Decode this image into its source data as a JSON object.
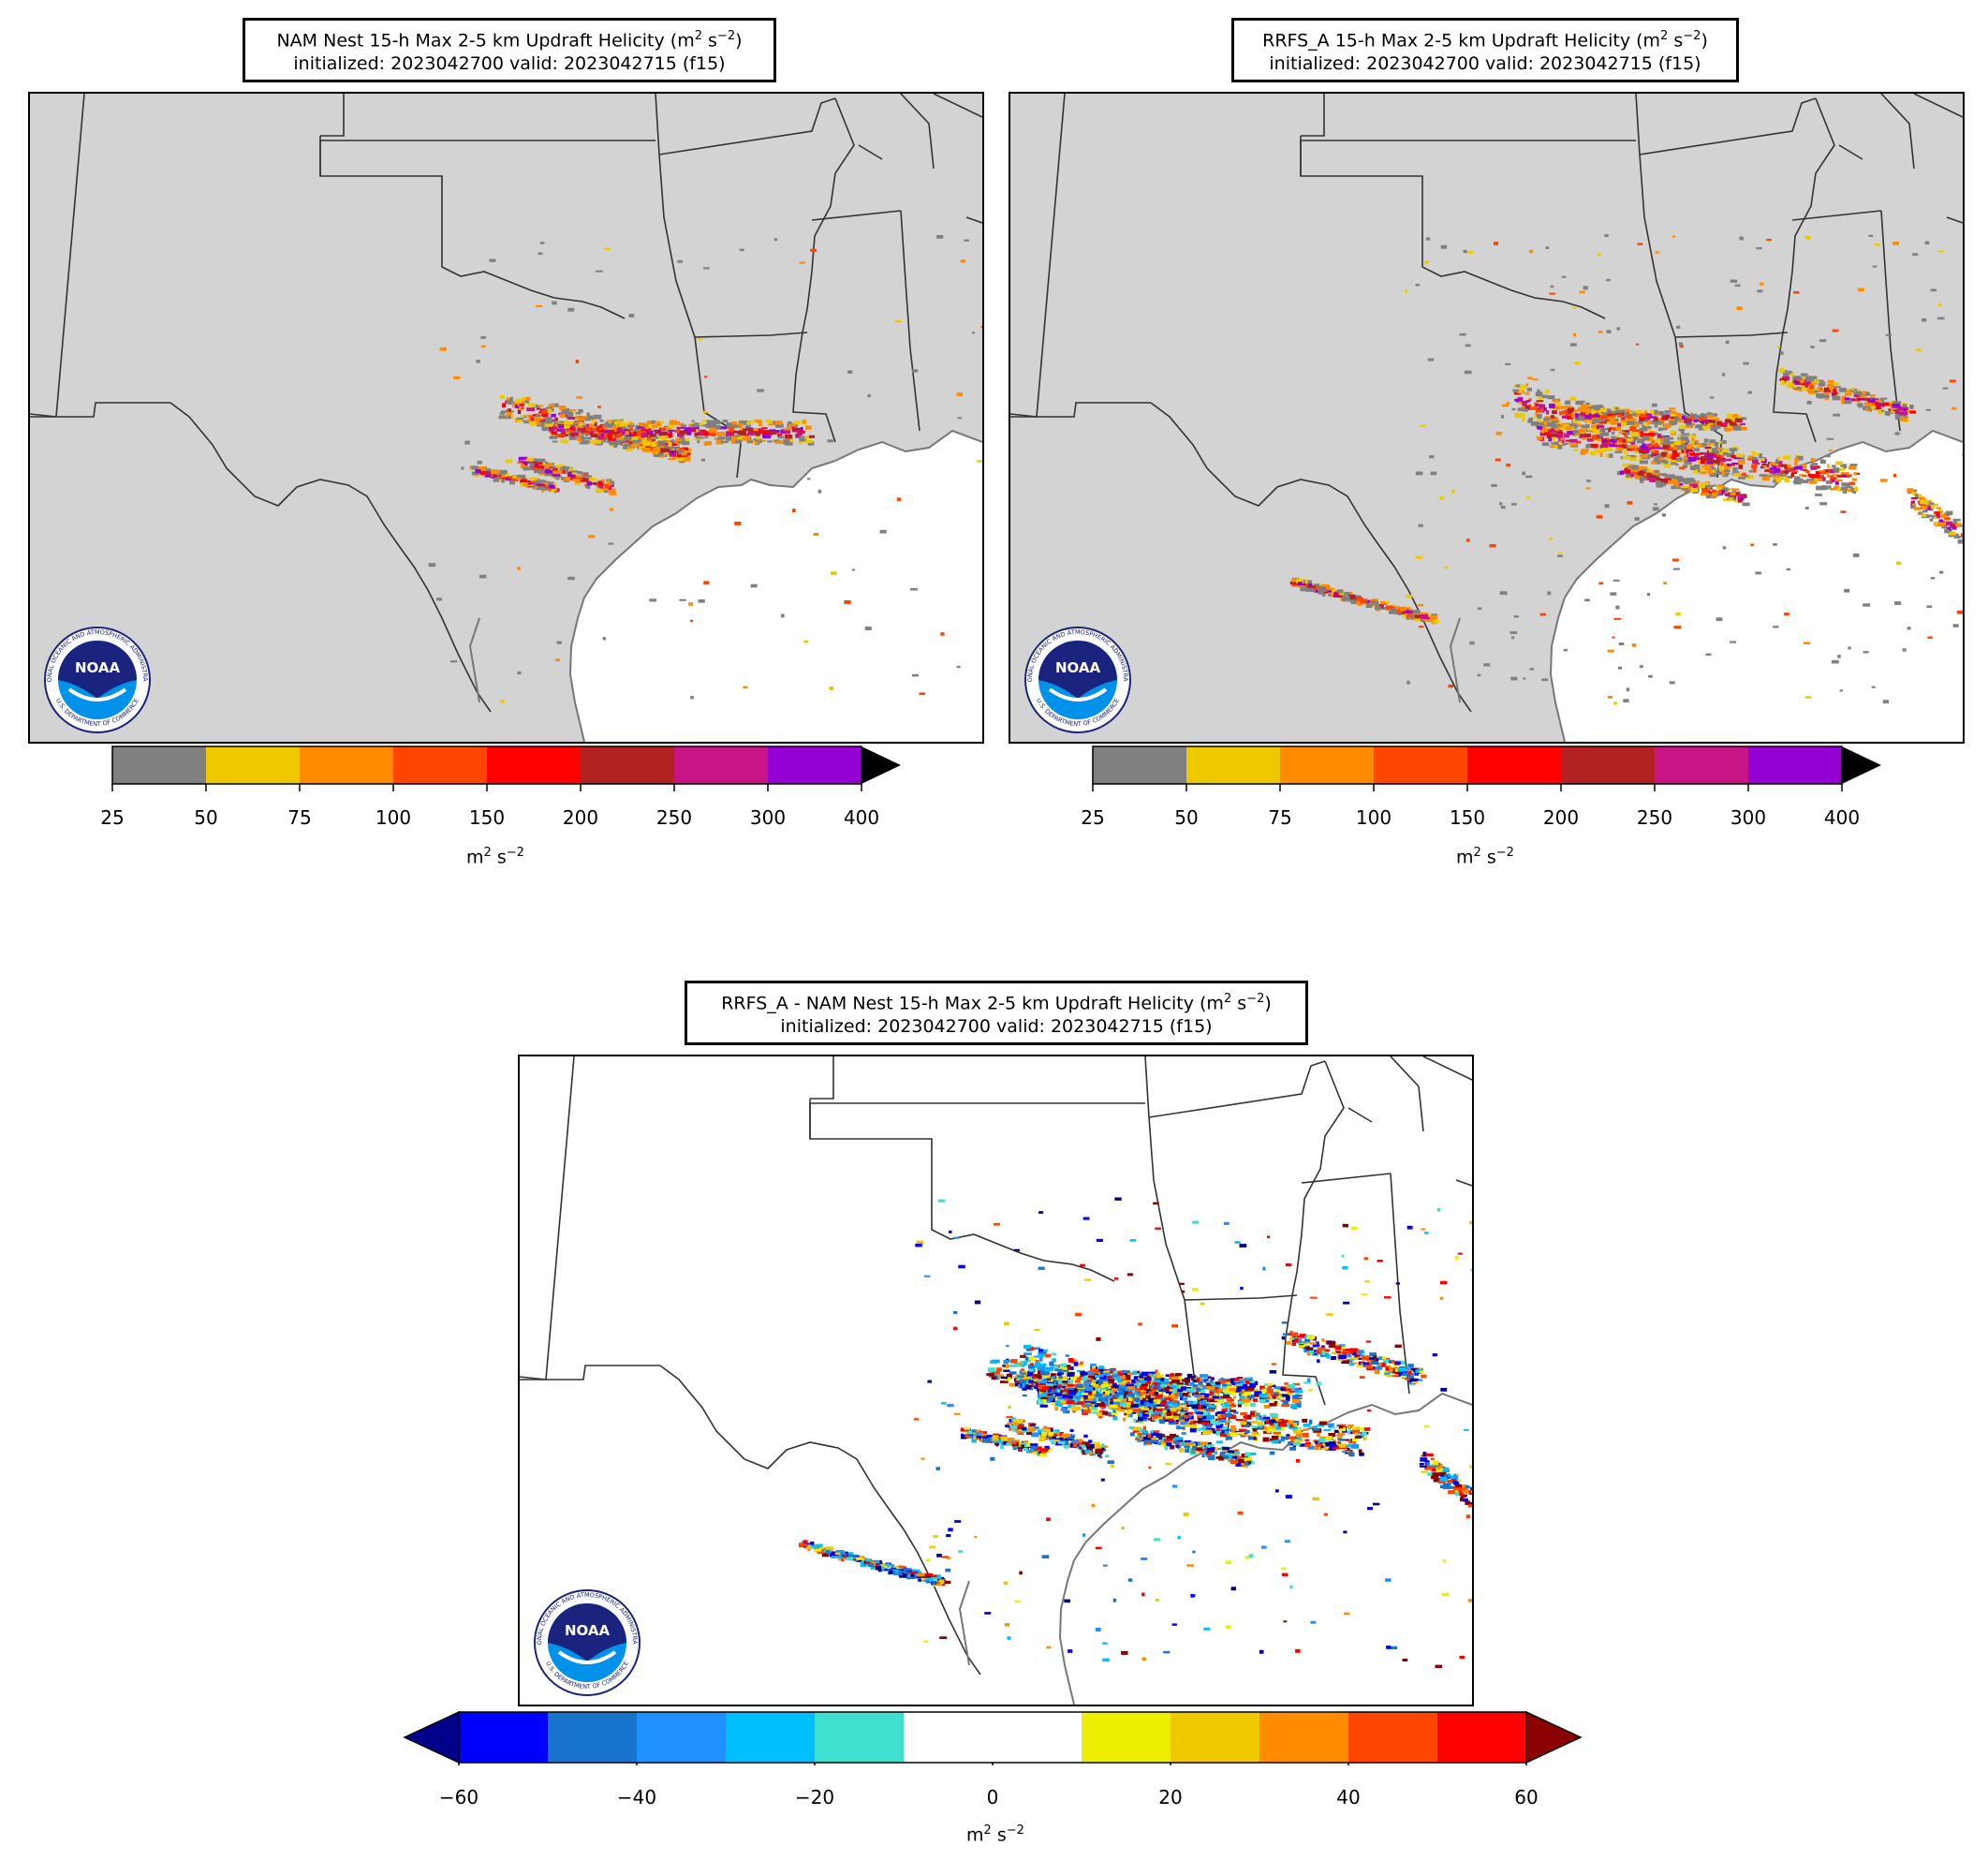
{
  "panels": [
    {
      "id": "nam",
      "title_line1": "NAM Nest 15-h Max 2-5 km Updraft Helicity (m",
      "title_line1_sup": "2",
      "title_line1_mid": " s",
      "title_line1_sup2": "−2",
      "title_line1_end": ")",
      "title_line2": "initialized: 2023042700 valid: 2023042715 (f15)"
    },
    {
      "id": "rrfs",
      "title_line1": "RRFS_A 15-h Max 2-5 km Updraft Helicity (m",
      "title_line1_sup": "2",
      "title_line1_mid": " s",
      "title_line1_sup2": "−2",
      "title_line1_end": ")",
      "title_line2": "initialized: 2023042700 valid: 2023042715 (f15)"
    },
    {
      "id": "diff",
      "title_line1": "RRFS_A - NAM Nest 15-h Max 2-5 km Updraft Helicity (m",
      "title_line1_sup": "2",
      "title_line1_mid": " s",
      "title_line1_sup2": "−2",
      "title_line1_end": ")",
      "title_line2": "initialized: 2023042700 valid: 2023042715 (f15)"
    }
  ],
  "uh_colorbar": {
    "ticks": [
      "25",
      "50",
      "75",
      "100",
      "150",
      "200",
      "250",
      "300",
      "400"
    ],
    "colors": [
      "#808080",
      "#eec900",
      "#ff8c00",
      "#ff4500",
      "#ff0000",
      "#b22222",
      "#c71585",
      "#9400d3"
    ],
    "extend_color": "#000000",
    "units_base": "m",
    "units_sup": "2",
    "units_mid": " s",
    "units_sup2": "−2"
  },
  "diff_colorbar": {
    "ticks": [
      "−60",
      "−40",
      "−20",
      "0",
      "20",
      "40",
      "60"
    ],
    "colors": [
      "#0000ff",
      "#1874cd",
      "#1e90ff",
      "#00bfff",
      "#40e0d0",
      "#ffffff",
      "#ffffff",
      "#eeee00",
      "#eec900",
      "#ff8c00",
      "#ff4500",
      "#ff0000"
    ],
    "low_extend_color": "#00008b",
    "high_extend_color": "#8b0000",
    "units_base": "m",
    "units_sup": "2",
    "units_mid": " s",
    "units_sup2": "−2"
  },
  "logo": {
    "text": "NOAA",
    "ring_text": "NATIONAL OCEANIC AND ATMOSPHERIC ADMINISTRATION",
    "ring_text_bottom": "U.S. DEPARTMENT OF COMMERCE",
    "dark_blue": "#1a237e",
    "light_blue": "#0091ea"
  },
  "colors": {
    "land": "#d3d3d3",
    "ocean": "#ffffff",
    "state_border": "#333333",
    "coast": "#777777"
  }
}
